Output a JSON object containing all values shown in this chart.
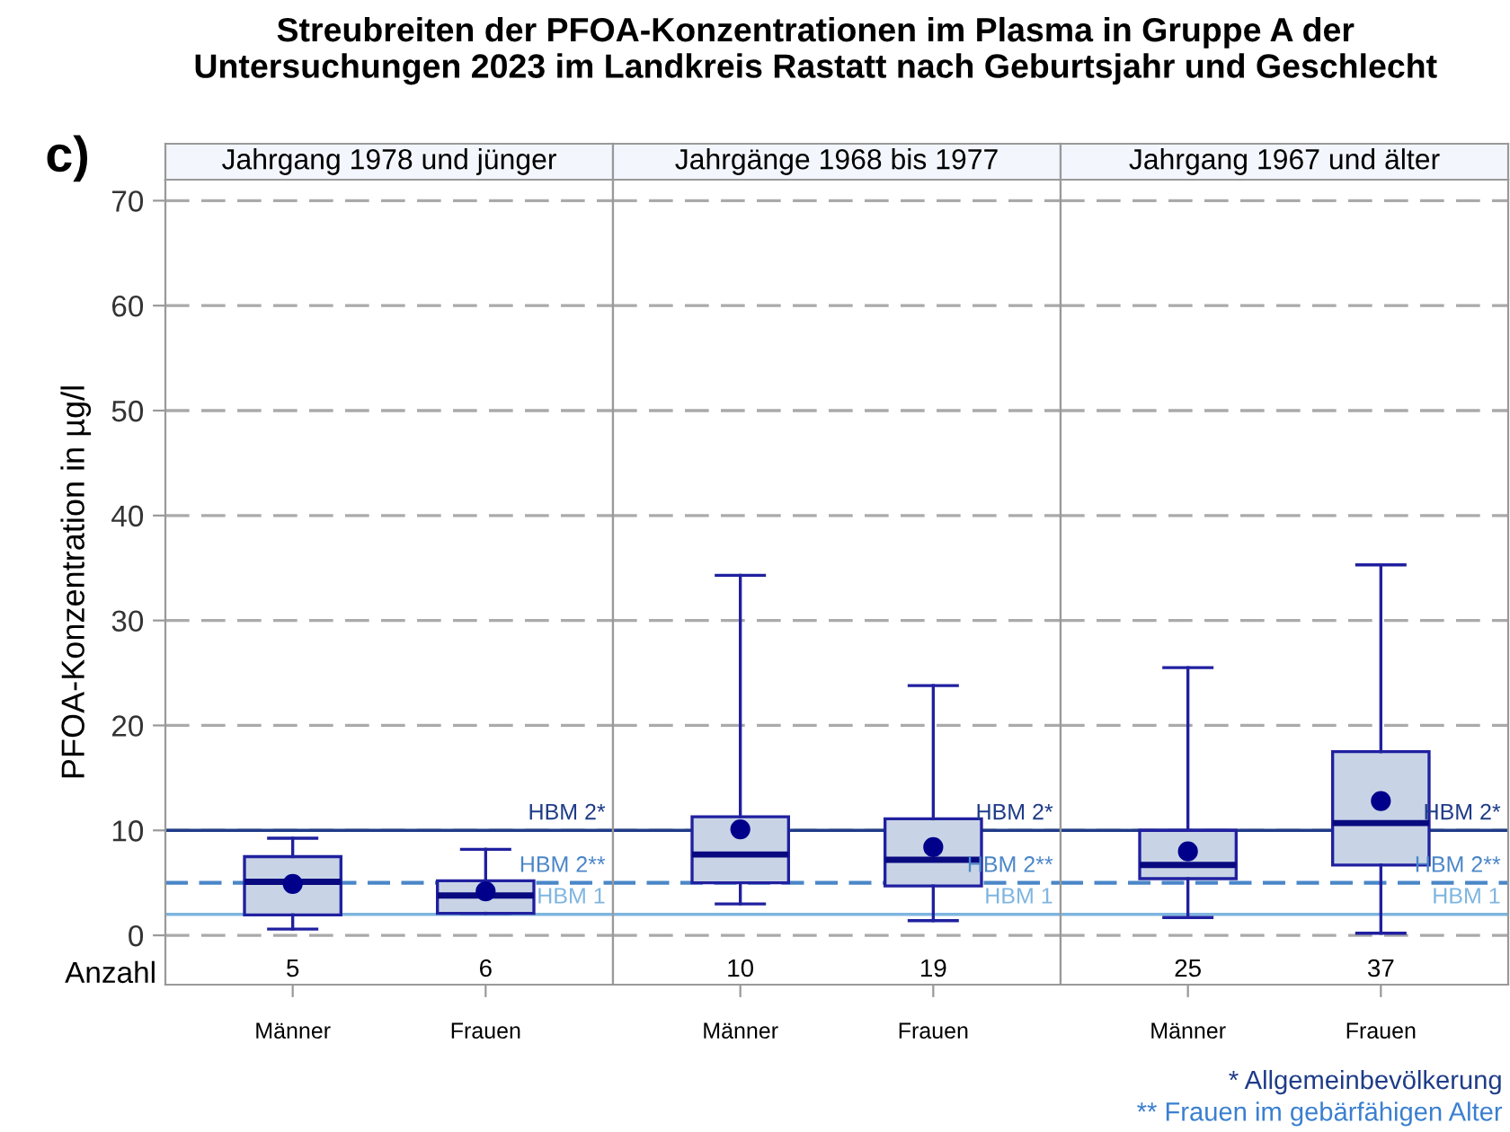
{
  "chart_data": [
    {
      "type": "box",
      "title": "Streubreiten der PFOA-Konzentrationen im Plasma in Gruppe A der\nUntersuchungen 2023 im Landkreis Rastatt nach Geburtsjahr und Geschlecht",
      "subtitle": "Jahrgang 1978 und jünger",
      "ylabel": "PFOA-Konzentration in µg/l",
      "categories": [
        "Männer",
        "Frauen"
      ],
      "color": "#2020a0",
      "boxes": [
        {
          "low": 0.6,
          "q1": 1.95,
          "median": 5.1,
          "q3": 7.5,
          "high": 9.25,
          "mean": 4.9
        },
        {
          "low": 2.1,
          "q1": 2.1,
          "median": 3.8,
          "q3": 5.2,
          "high": 8.2,
          "mean": 4.2
        }
      ],
      "ylim": [
        -4.7,
        72
      ],
      "yticks": [
        0,
        10,
        20,
        30,
        40,
        50,
        60,
        70
      ],
      "grid": "y",
      "ref_lines": [
        {
          "axis": "y",
          "value": 10,
          "label": "HBM 2*",
          "color": "#1f3c88",
          "line_style": "solid"
        },
        {
          "axis": "y",
          "value": 5,
          "label": "HBM 2**",
          "color": "#4a86c8",
          "line_style": "dashed"
        },
        {
          "axis": "y",
          "value": 2,
          "label": "HBM 1",
          "color": "#7fb5e0",
          "line_style": "solid"
        }
      ],
      "annotations": [
        "c)",
        "Anzahl",
        "5",
        "6"
      ]
    },
    {
      "type": "box",
      "title": "Jahrgänge 1968 bis 1977",
      "categories": [
        "Männer",
        "Frauen"
      ],
      "color": "#2020a0",
      "boxes": [
        {
          "low": 3.0,
          "q1": 5.0,
          "median": 7.7,
          "q3": 11.3,
          "high": 34.3,
          "mean": 10.1
        },
        {
          "low": 1.4,
          "q1": 4.7,
          "median": 7.2,
          "q3": 11.1,
          "high": 23.8,
          "mean": 8.4
        }
      ],
      "ylim": [
        -4.7,
        72
      ],
      "yticks": [
        0,
        10,
        20,
        30,
        40,
        50,
        60,
        70
      ],
      "grid": "y",
      "tick_labels": "x",
      "ref_lines": [
        {
          "axis": "y",
          "value": 10,
          "label": "HBM 2*",
          "color": "#1f3c88",
          "line_style": "solid"
        },
        {
          "axis": "y",
          "value": 5,
          "label": "HBM 2**",
          "color": "#4a86c8",
          "line_style": "dashed"
        },
        {
          "axis": "y",
          "value": 2,
          "label": "HBM 1",
          "color": "#7fb5e0",
          "line_style": "solid"
        }
      ],
      "annotations": [
        "10",
        "19"
      ]
    },
    {
      "type": "box",
      "title": "Jahrgang 1967 und älter",
      "categories": [
        "Männer",
        "Frauen"
      ],
      "color": "#2020a0",
      "boxes": [
        {
          "low": 1.7,
          "q1": 5.4,
          "median": 6.7,
          "q3": 10.0,
          "high": 25.5,
          "mean": 8.0
        },
        {
          "low": 0.2,
          "q1": 6.7,
          "median": 10.7,
          "q3": 17.5,
          "high": 35.3,
          "mean": 12.8
        }
      ],
      "ylim": [
        -4.7,
        72
      ],
      "yticks": [
        0,
        10,
        20,
        30,
        40,
        50,
        60,
        70
      ],
      "grid": "y",
      "tick_labels": "x",
      "ref_lines": [
        {
          "axis": "y",
          "value": 10,
          "label": "HBM 2*",
          "color": "#1f3c88",
          "line_style": "solid"
        },
        {
          "axis": "y",
          "value": 5,
          "label": "HBM 2**",
          "color": "#4a86c8",
          "line_style": "dashed"
        },
        {
          "axis": "y",
          "value": 2,
          "label": "HBM 1",
          "color": "#7fb5e0",
          "line_style": "solid"
        }
      ],
      "annotations": [
        "25",
        "37",
        "* Allgemeinbevölkerung",
        "** Frauen im gebärfähigen Alter"
      ]
    }
  ]
}
